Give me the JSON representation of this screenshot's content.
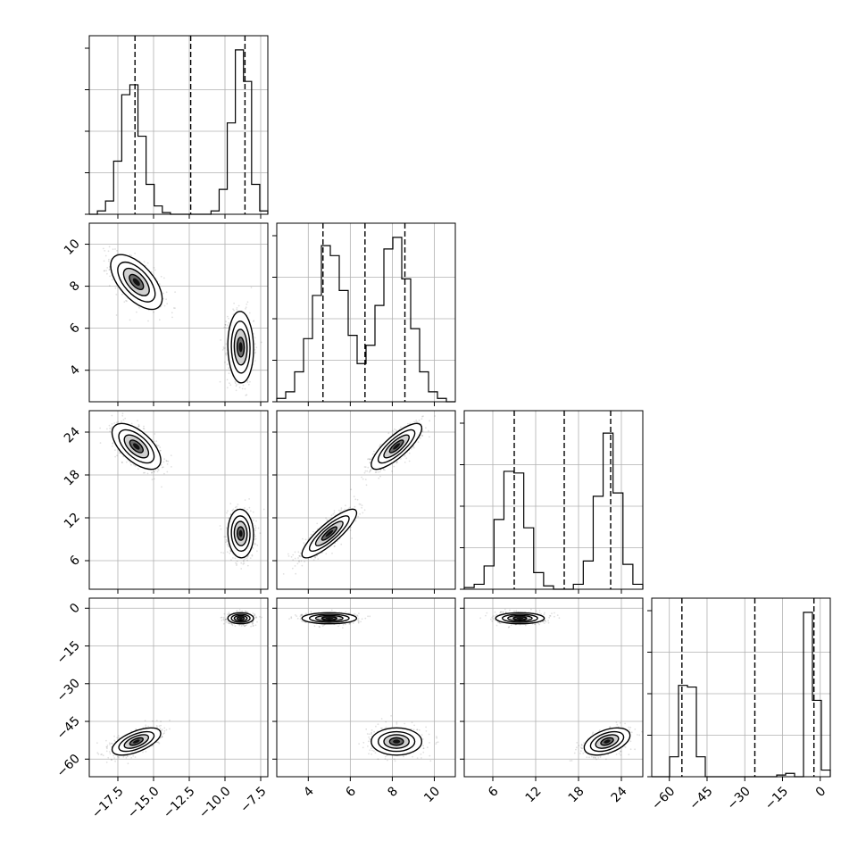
{
  "chart_data": {
    "type": "corner",
    "grid": true,
    "vars": [
      {
        "range": [
          -19.5,
          -7.0
        ],
        "ticks": [
          -17.5,
          -15.0,
          -12.5,
          -10.0,
          -7.5
        ],
        "tick_labels": [
          "−17.5",
          "−15.0",
          "−12.5",
          "−10.0",
          "−7.5"
        ],
        "quantiles": [
          -16.3,
          -12.4,
          -8.6
        ]
      },
      {
        "range": [
          2.5,
          11.0
        ],
        "ticks": [
          4,
          6,
          8,
          10
        ],
        "tick_labels": [
          "4",
          "6",
          "8",
          "10"
        ],
        "quantiles": [
          4.7,
          6.7,
          8.6
        ]
      },
      {
        "range": [
          2.0,
          27.0
        ],
        "ticks": [
          6,
          12,
          18,
          24
        ],
        "tick_labels": [
          "6",
          "12",
          "18",
          "24"
        ],
        "quantiles": [
          9.0,
          16.0,
          22.5
        ]
      },
      {
        "range": [
          -67.0,
          4.0
        ],
        "ticks": [
          -60,
          -45,
          -30,
          -15,
          0
        ],
        "tick_labels": [
          "−60",
          "−45",
          "−30",
          "−15",
          "0"
        ],
        "quantiles": [
          -55.0,
          -26.0,
          -2.5
        ]
      }
    ],
    "histograms": [
      [
        0.0,
        0.02,
        0.08,
        0.32,
        0.72,
        0.78,
        0.47,
        0.18,
        0.05,
        0.01,
        0.0,
        0.0,
        0.0,
        0.0,
        0.0,
        0.02,
        0.15,
        0.55,
        0.99,
        0.8,
        0.18,
        0.02
      ],
      [
        0.02,
        0.06,
        0.18,
        0.38,
        0.64,
        0.94,
        0.88,
        0.67,
        0.4,
        0.23,
        0.34,
        0.58,
        0.92,
        0.99,
        0.74,
        0.44,
        0.18,
        0.06,
        0.02,
        0.0
      ],
      [
        0.01,
        0.03,
        0.14,
        0.42,
        0.71,
        0.7,
        0.37,
        0.1,
        0.02,
        0.0,
        0.0,
        0.03,
        0.17,
        0.56,
        0.94,
        0.58,
        0.15,
        0.03
      ],
      [
        0.0,
        0.0,
        0.12,
        0.55,
        0.54,
        0.12,
        0.0,
        0.0,
        0.0,
        0.0,
        0.0,
        0.0,
        0.0,
        0.0,
        0.01,
        0.02,
        0.0,
        0.99,
        0.46,
        0.04
      ]
    ],
    "clusters": [
      {
        "pair": [
          1,
          0
        ],
        "points": [
          [
            -16.2,
            8.2,
            0.9,
            0.65,
            -0.6
          ],
          [
            -8.9,
            5.1,
            0.45,
            0.85,
            -0.05
          ]
        ]
      },
      {
        "pair": [
          2,
          0
        ],
        "points": [
          [
            -16.2,
            22.0,
            0.85,
            1.6,
            -0.6
          ],
          [
            -8.9,
            9.8,
            0.45,
            1.7,
            -0.05
          ]
        ]
      },
      {
        "pair": [
          2,
          1
        ],
        "points": [
          [
            5.0,
            9.8,
            0.65,
            1.7,
            0.85
          ],
          [
            8.2,
            22.0,
            0.6,
            1.6,
            0.8
          ]
        ]
      },
      {
        "pair": [
          3,
          0
        ],
        "points": [
          [
            -8.9,
            -4.0,
            0.45,
            1.1,
            0.0
          ],
          [
            -16.2,
            -53.0,
            0.85,
            2.7,
            0.6
          ]
        ]
      },
      {
        "pair": [
          3,
          1
        ],
        "points": [
          [
            5.0,
            -4.0,
            0.65,
            1.1,
            0.0
          ],
          [
            8.2,
            -53.0,
            0.6,
            2.7,
            0.0
          ]
        ]
      },
      {
        "pair": [
          3,
          2
        ],
        "points": [
          [
            9.8,
            -4.0,
            1.7,
            1.1,
            0.0
          ],
          [
            22.0,
            -53.0,
            1.6,
            2.7,
            0.45
          ]
        ]
      }
    ]
  }
}
